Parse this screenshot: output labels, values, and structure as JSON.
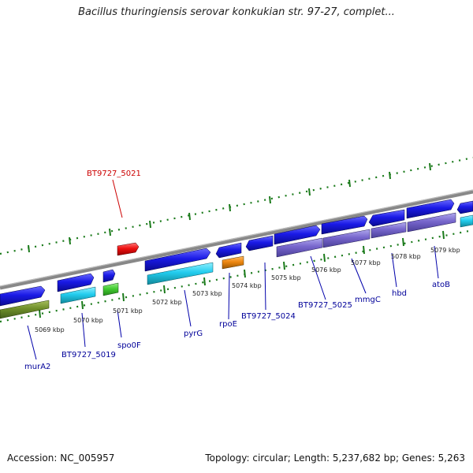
{
  "title": "Bacillus thuringiensis serovar konkukian str. 97-27, complet...",
  "footer": {
    "accession": "Accession: NC_005957",
    "summary": "Topology: circular; Length: 5,237,682 bp; Genes: 5,263"
  },
  "scale_labels": [
    "5069 kbp",
    "5070 kbp",
    "5071 kbp",
    "5072 kbp",
    "5073 kbp",
    "5074 kbp",
    "5075 kbp",
    "5076 kbp",
    "5077 kbp",
    "5078 kbp",
    "5079 kbp"
  ],
  "gene_labels": [
    {
      "text": "BT9727_5021",
      "color": "#cc0000"
    },
    {
      "text": "murA2",
      "color": "#000099"
    },
    {
      "text": "BT9727_5019",
      "color": "#000099"
    },
    {
      "text": "spo0F",
      "color": "#000099"
    },
    {
      "text": "pyrG",
      "color": "#000099"
    },
    {
      "text": "rpoE",
      "color": "#000099"
    },
    {
      "text": "BT9727_5024",
      "color": "#000099"
    },
    {
      "text": "BT9727_5025",
      "color": "#000099"
    },
    {
      "text": "mmgC",
      "color": "#000099"
    },
    {
      "text": "hbd",
      "color": "#000099"
    },
    {
      "text": "atoB",
      "color": "#000099"
    }
  ],
  "colors": {
    "backbone": "#888888",
    "tick": "#1a7a1a",
    "forward_gene": "#1a1ae6",
    "reverse_gene_cyan": "#22ccee",
    "reverse_gene_purple": "#7766cc",
    "green_gene": "#44cc33",
    "olive_gene": "#6f8f2a",
    "orange_gene": "#ee8811",
    "red_gene": "#ee1111"
  }
}
